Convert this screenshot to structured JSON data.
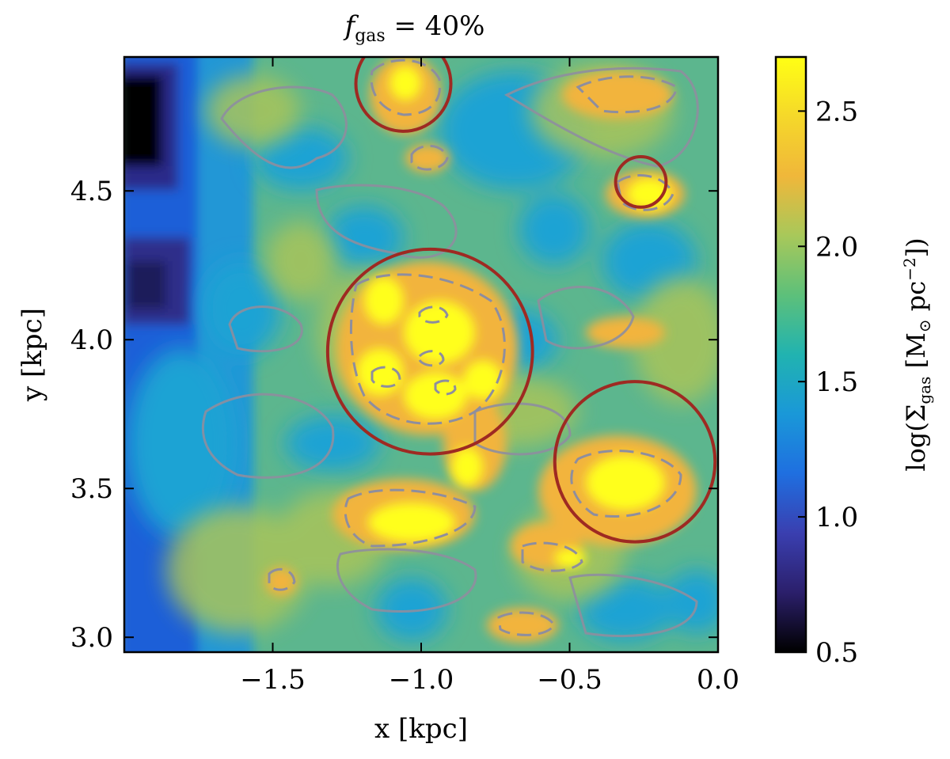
{
  "title": {
    "prefix": "f",
    "subscript": "gas",
    "suffix": " = 40%"
  },
  "chart_data": {
    "type": "heatmap",
    "xlabel": "x [kpc]",
    "ylabel": "y [kpc]",
    "xlim": [
      -2.0,
      0.0
    ],
    "ylim": [
      2.95,
      4.95
    ],
    "xticks": [
      -1.5,
      -1.0,
      -0.5,
      0.0
    ],
    "xticklabels": [
      "−1.5",
      "−1.0",
      "−0.5",
      "0.0"
    ],
    "yticks": [
      3.0,
      3.5,
      4.0,
      4.5
    ],
    "yticklabels": [
      "3.0",
      "3.5",
      "4.0",
      "4.5"
    ],
    "colorbar": {
      "label_prefix": "log(Σ",
      "label_sub": "gas",
      "label_mid": " [M",
      "label_sun": "⊙",
      "label_unit": " pc",
      "label_sup": "−2",
      "label_suffix": "])",
      "range": [
        0.5,
        2.7
      ],
      "ticks": [
        0.5,
        1.0,
        1.5,
        2.0,
        2.5
      ],
      "ticklabels": [
        "0.5",
        "1.0",
        "1.5",
        "2.0",
        "2.5"
      ],
      "colormap": [
        "#000000",
        "#2b1f6b",
        "#3a3fb0",
        "#1f6fe0",
        "#1a98d8",
        "#21b3b0",
        "#5dc07a",
        "#a8c85a",
        "#f0b73a",
        "#f5d82a",
        "#ffff14"
      ]
    },
    "circles": [
      {
        "x": -1.06,
        "y": 4.86,
        "r": 0.16
      },
      {
        "x": -0.26,
        "y": 4.53,
        "r": 0.085
      },
      {
        "x": -0.97,
        "y": 3.96,
        "r": 0.345
      },
      {
        "x": -0.28,
        "y": 3.59,
        "r": 0.27
      }
    ],
    "circle_color": "#9e2a22",
    "contour_color": "#8e8e9e"
  }
}
